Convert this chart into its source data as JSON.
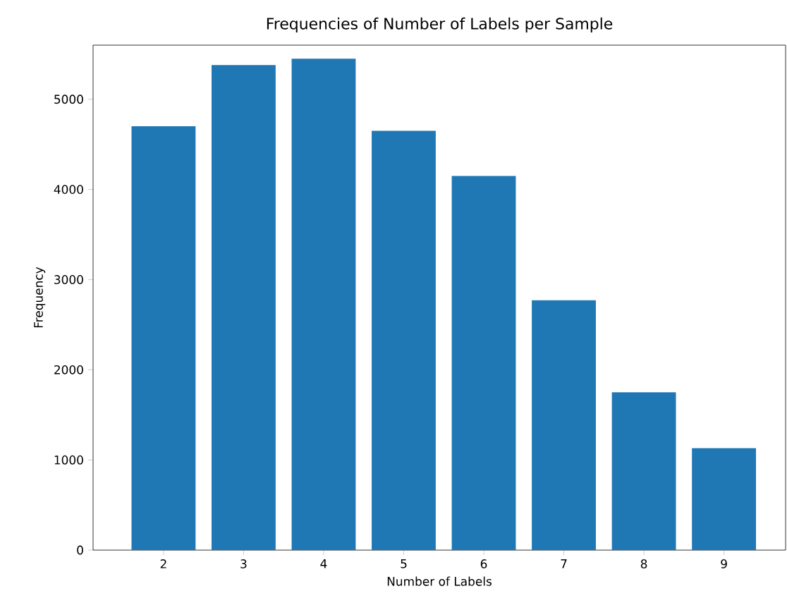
{
  "chart_data": {
    "type": "bar",
    "title": "Frequencies of Number of Labels per Sample",
    "xlabel": "Number of Labels",
    "ylabel": "Frequency",
    "categories": [
      "2",
      "3",
      "4",
      "5",
      "6",
      "7",
      "8",
      "9"
    ],
    "values": [
      4700,
      5380,
      5450,
      4650,
      4150,
      2770,
      1750,
      1130
    ],
    "color": "#1f77b4",
    "ylim": [
      0,
      5600
    ],
    "yticks": [
      0,
      1000,
      2000,
      3000,
      4000,
      5000
    ]
  }
}
